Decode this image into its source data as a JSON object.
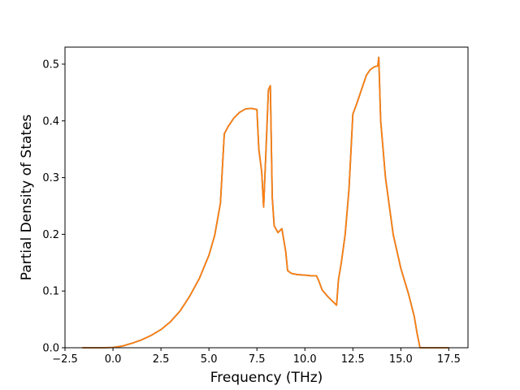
{
  "chart_data": {
    "type": "line",
    "title": "",
    "xlabel": "Frequency (THz)",
    "ylabel": "Partial Density of States",
    "xlim": [
      -2.5,
      18.5
    ],
    "ylim": [
      0.0,
      0.53
    ],
    "x_ticks": [
      -2.5,
      0.0,
      2.5,
      5.0,
      7.5,
      10.0,
      12.5,
      15.0,
      17.5
    ],
    "x_tick_labels": [
      "−2.5",
      "0.0",
      "2.5",
      "5.0",
      "7.5",
      "10.0",
      "12.5",
      "15.0",
      "17.5"
    ],
    "y_ticks": [
      0.0,
      0.1,
      0.2,
      0.3,
      0.4,
      0.5
    ],
    "y_tick_labels": [
      "0.0",
      "0.1",
      "0.2",
      "0.3",
      "0.4",
      "0.5"
    ],
    "grid": false,
    "legend": "none",
    "series": [
      {
        "color": "#1f77b4",
        "x": [
          -1.6,
          -0.5,
          0.0,
          0.5,
          1.0,
          1.5,
          2.0,
          2.5,
          3.0,
          3.5,
          4.0,
          4.5,
          5.0,
          5.3,
          5.6,
          5.8,
          6.0,
          6.3,
          6.6,
          6.9,
          7.2,
          7.5,
          7.6,
          7.75,
          7.85,
          8.0,
          8.1,
          8.2,
          8.3,
          8.4,
          8.6,
          8.8,
          9.0,
          9.1,
          9.3,
          9.6,
          10.0,
          10.3,
          10.6,
          10.7,
          10.9,
          11.2,
          11.65,
          11.75,
          11.9,
          12.1,
          12.3,
          12.5,
          12.7,
          12.9,
          13.2,
          13.4,
          13.6,
          13.8,
          13.85,
          13.95,
          14.2,
          14.6,
          15.0,
          15.4,
          15.7,
          15.85,
          16.0,
          16.5,
          17.5
        ],
        "values": [
          0.0,
          0.0,
          0.0005,
          0.003,
          0.008,
          0.014,
          0.022,
          0.032,
          0.046,
          0.065,
          0.091,
          0.122,
          0.163,
          0.198,
          0.255,
          0.377,
          0.39,
          0.405,
          0.415,
          0.421,
          0.422,
          0.42,
          0.35,
          0.31,
          0.248,
          0.37,
          0.455,
          0.462,
          0.265,
          0.215,
          0.203,
          0.21,
          0.17,
          0.136,
          0.131,
          0.129,
          0.128,
          0.127,
          0.127,
          0.12,
          0.102,
          0.09,
          0.075,
          0.12,
          0.15,
          0.2,
          0.28,
          0.412,
          0.43,
          0.45,
          0.48,
          0.49,
          0.495,
          0.497,
          0.512,
          0.4,
          0.3,
          0.2,
          0.14,
          0.095,
          0.055,
          0.025,
          0.0,
          0.0,
          0.0
        ]
      },
      {
        "color": "#ff7f0e",
        "x": [
          -1.6,
          -0.5,
          0.0,
          0.5,
          1.0,
          1.5,
          2.0,
          2.5,
          3.0,
          3.5,
          4.0,
          4.5,
          5.0,
          5.3,
          5.6,
          5.8,
          6.0,
          6.3,
          6.6,
          6.9,
          7.2,
          7.5,
          7.6,
          7.75,
          7.85,
          8.0,
          8.1,
          8.2,
          8.3,
          8.4,
          8.6,
          8.8,
          9.0,
          9.1,
          9.3,
          9.6,
          10.0,
          10.3,
          10.6,
          10.7,
          10.9,
          11.2,
          11.65,
          11.75,
          11.9,
          12.1,
          12.3,
          12.5,
          12.7,
          12.9,
          13.2,
          13.4,
          13.6,
          13.8,
          13.85,
          13.95,
          14.2,
          14.6,
          15.0,
          15.4,
          15.7,
          15.85,
          16.0,
          16.5,
          17.5
        ],
        "values": [
          0.0,
          0.0,
          0.0005,
          0.003,
          0.008,
          0.014,
          0.022,
          0.032,
          0.046,
          0.065,
          0.091,
          0.122,
          0.163,
          0.198,
          0.255,
          0.377,
          0.39,
          0.405,
          0.415,
          0.421,
          0.422,
          0.42,
          0.35,
          0.31,
          0.248,
          0.37,
          0.455,
          0.462,
          0.265,
          0.215,
          0.203,
          0.21,
          0.17,
          0.136,
          0.131,
          0.129,
          0.128,
          0.127,
          0.127,
          0.12,
          0.102,
          0.09,
          0.075,
          0.12,
          0.15,
          0.2,
          0.28,
          0.412,
          0.43,
          0.45,
          0.48,
          0.49,
          0.495,
          0.497,
          0.512,
          0.4,
          0.3,
          0.2,
          0.14,
          0.095,
          0.055,
          0.025,
          0.0,
          0.0,
          0.0
        ]
      }
    ]
  }
}
